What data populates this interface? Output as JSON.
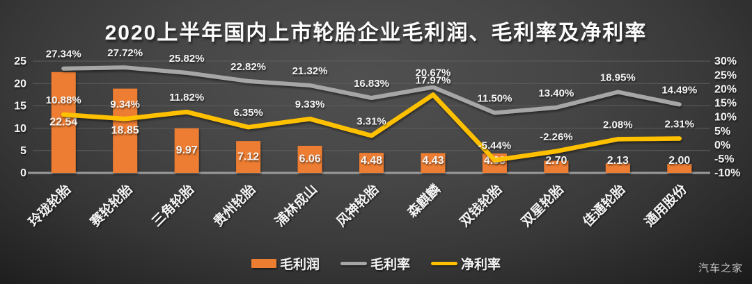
{
  "title": "2020上半年国内上市轮胎企业毛利润、毛利率及净利率",
  "watermark": "汽车之家",
  "colors": {
    "bar": "#ED7D31",
    "gross_margin_line": "#A6A6A6",
    "net_margin_line": "#FFC000",
    "text": "#F5F5F5",
    "gridline": "#5E5E5E",
    "axis_line": "#9B9B9B"
  },
  "legend": [
    {
      "label": "毛利润",
      "type": "bar",
      "color": "#ED7D31"
    },
    {
      "label": "毛利率",
      "type": "line",
      "color": "#A6A6A6"
    },
    {
      "label": "净利率",
      "type": "line",
      "color": "#FFC000"
    }
  ],
  "chart_data": {
    "type": "bar",
    "subtype": "combo bar + two lines, dual y-axis",
    "title": "2020上半年国内上市轮胎企业毛利润、毛利率及净利率",
    "categories": [
      "玲珑轮胎",
      "赛轮轮胎",
      "三角轮胎",
      "贵州轮胎",
      "浦林成山",
      "风神轮胎",
      "森麒麟",
      "双钱轮胎",
      "双星轮胎",
      "佳通轮胎",
      "通用股份"
    ],
    "series": [
      {
        "name": "毛利润",
        "type": "bar",
        "axis": "left",
        "color": "#ED7D31",
        "values": [
          22.54,
          18.85,
          9.97,
          7.12,
          6.06,
          4.48,
          4.43,
          4.33,
          2.7,
          2.13,
          2.0
        ],
        "labels": [
          "22.54",
          "18.85",
          "9.97",
          "7.12",
          "6.06",
          "4.48",
          "4.43",
          "4.33",
          "2.70",
          "2.13",
          "2.00"
        ]
      },
      {
        "name": "毛利率",
        "type": "line",
        "axis": "right",
        "color": "#A6A6A6",
        "values": [
          27.34,
          27.72,
          25.82,
          22.82,
          21.32,
          16.83,
          20.67,
          11.5,
          13.4,
          18.95,
          14.49
        ],
        "labels": [
          "27.34%",
          "27.72%",
          "25.82%",
          "22.82%",
          "21.32%",
          "16.83%",
          "20.67%",
          "11.50%",
          "13.40%",
          "18.95%",
          "14.49%"
        ]
      },
      {
        "name": "净利率",
        "type": "line",
        "axis": "right",
        "color": "#FFC000",
        "values": [
          10.88,
          9.34,
          11.82,
          6.35,
          9.33,
          3.31,
          17.97,
          -5.44,
          -2.26,
          2.08,
          2.31
        ],
        "labels": [
          "10.88%",
          "9.34%",
          "11.82%",
          "6.35%",
          "9.33%",
          "3.31%",
          "17.97%",
          "-5.44%",
          "-2.26%",
          "2.08%",
          "2.31%"
        ]
      }
    ],
    "axes": {
      "left": {
        "min": 0,
        "max": 25,
        "tick_labels": [
          "25",
          "20",
          "15",
          "10",
          "5",
          "0"
        ]
      },
      "right": {
        "min": -10,
        "max": 30,
        "tick_labels": [
          "30%",
          "25%",
          "20%",
          "15%",
          "10%",
          "5%",
          "0%",
          "-5%",
          "-10%"
        ]
      }
    },
    "grid": "horizontal gridlines at left-axis steps of 5",
    "legend_position": "bottom"
  }
}
